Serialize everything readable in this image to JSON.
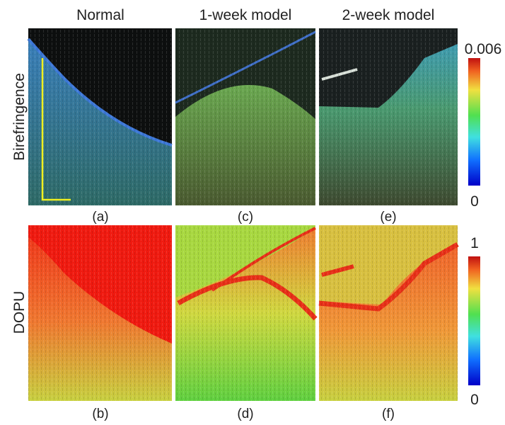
{
  "columns": [
    "Normal",
    "1-week model",
    "2-week model"
  ],
  "rows": [
    "Birefringence",
    "DOPU"
  ],
  "panels": [
    [
      "(a)",
      "(c)",
      "(e)"
    ],
    [
      "(b)",
      "(d)",
      "(f)"
    ]
  ],
  "colorbars": [
    {
      "max": "0.006",
      "min": "0"
    },
    {
      "max": "1",
      "min": "0"
    }
  ]
}
